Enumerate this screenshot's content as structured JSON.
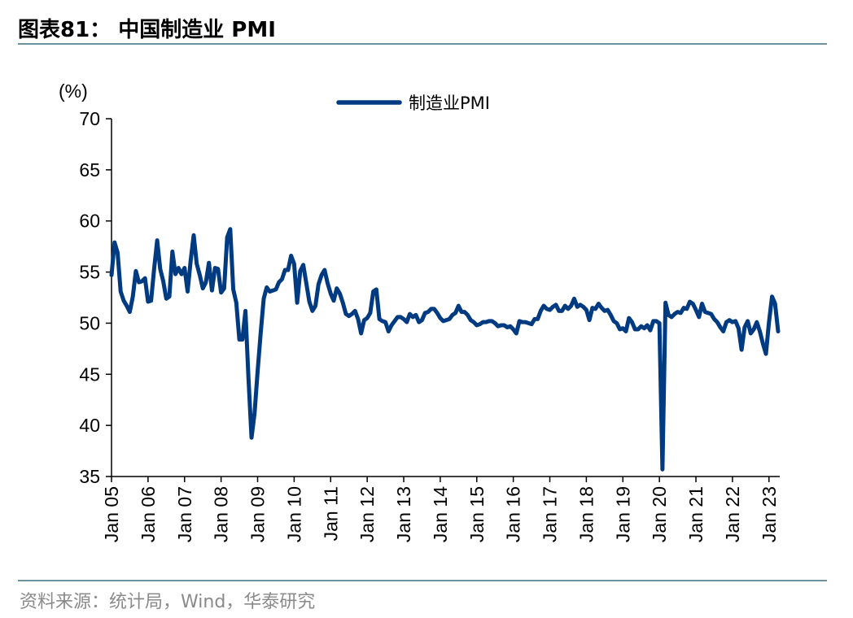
{
  "title": "图表81：  中国制造业 PMI",
  "source": "资料来源：统计局，Wind，华泰研究",
  "chart_data": {
    "type": "line",
    "title": "",
    "ylabel": "(%)",
    "xlabel": "",
    "ylim": [
      35,
      70
    ],
    "yticks": [
      35,
      40,
      45,
      50,
      55,
      60,
      65,
      70
    ],
    "xticks": [
      "Jan 05",
      "Jan 06",
      "Jan 07",
      "Jan 08",
      "Jan 09",
      "Jan 10",
      "Jan 11",
      "Jan 12",
      "Jan 13",
      "Jan 14",
      "Jan 15",
      "Jan 16",
      "Jan 17",
      "Jan 18",
      "Jan 19",
      "Jan 20",
      "Jan 21",
      "Jan 22",
      "Jan 23"
    ],
    "x_start": "2005-01",
    "legend": "top-center",
    "grid": false,
    "color": "#003a80",
    "series": [
      {
        "name": "制造业PMI",
        "values": [
          54.7,
          57.9,
          56.9,
          53.1,
          52.2,
          51.7,
          51.1,
          52.6,
          55.1,
          54.0,
          54.1,
          54.4,
          52.1,
          52.2,
          55.3,
          58.1,
          55.3,
          54.1,
          52.4,
          52.6,
          57.0,
          54.8,
          55.4,
          54.8,
          55.4,
          53.1,
          56.1,
          58.6,
          55.8,
          54.7,
          53.4,
          54.0,
          55.9,
          53.2,
          55.4,
          55.3,
          53.0,
          53.4,
          58.4,
          59.2,
          53.3,
          52.0,
          48.4,
          48.4,
          51.2,
          44.6,
          38.8,
          41.2,
          45.3,
          49.0,
          52.4,
          53.5,
          53.1,
          53.2,
          53.3,
          54.0,
          54.3,
          55.2,
          55.2,
          56.6,
          55.8,
          52.0,
          55.1,
          55.7,
          53.9,
          52.1,
          51.2,
          51.7,
          53.8,
          54.7,
          55.2,
          53.9,
          52.9,
          52.2,
          53.4,
          52.9,
          52.0,
          50.9,
          50.7,
          50.9,
          51.2,
          50.4,
          49.0,
          50.3,
          50.5,
          51.0,
          53.1,
          53.3,
          50.4,
          50.2,
          50.1,
          49.2,
          49.8,
          50.2,
          50.6,
          50.6,
          50.4,
          50.1,
          50.9,
          50.6,
          50.8,
          50.1,
          50.3,
          51.0,
          51.1,
          51.4,
          51.4,
          51.0,
          50.5,
          50.2,
          50.3,
          50.4,
          50.8,
          51.0,
          51.7,
          51.1,
          51.1,
          50.8,
          50.3,
          50.1,
          49.8,
          49.9,
          50.1,
          50.1,
          50.2,
          50.2,
          50.0,
          49.7,
          49.8,
          49.8,
          49.6,
          49.7,
          49.4,
          49.0,
          50.2,
          50.1,
          50.1,
          50.0,
          49.9,
          50.4,
          50.4,
          51.2,
          51.7,
          51.4,
          51.3,
          51.6,
          51.8,
          51.2,
          51.2,
          51.7,
          51.4,
          51.7,
          52.4,
          51.6,
          51.8,
          51.6,
          51.3,
          50.3,
          51.5,
          51.4,
          51.9,
          51.5,
          51.2,
          51.3,
          50.8,
          50.2,
          50.0,
          49.4,
          49.5,
          49.2,
          50.5,
          50.1,
          49.4,
          49.4,
          49.7,
          49.5,
          49.8,
          49.3,
          50.2,
          50.2,
          50.0,
          35.7,
          52.0,
          50.8,
          50.6,
          50.9,
          51.1,
          51.0,
          51.5,
          51.4,
          52.1,
          51.9,
          51.3,
          50.6,
          51.9,
          51.1,
          51.0,
          50.9,
          50.4,
          50.1,
          49.6,
          49.2,
          50.1,
          50.3,
          50.1,
          50.2,
          49.5,
          47.4,
          49.6,
          50.2,
          49.0,
          49.4,
          50.1,
          49.2,
          48.0,
          47.0,
          50.1,
          52.6,
          51.9,
          49.2
        ]
      }
    ]
  }
}
